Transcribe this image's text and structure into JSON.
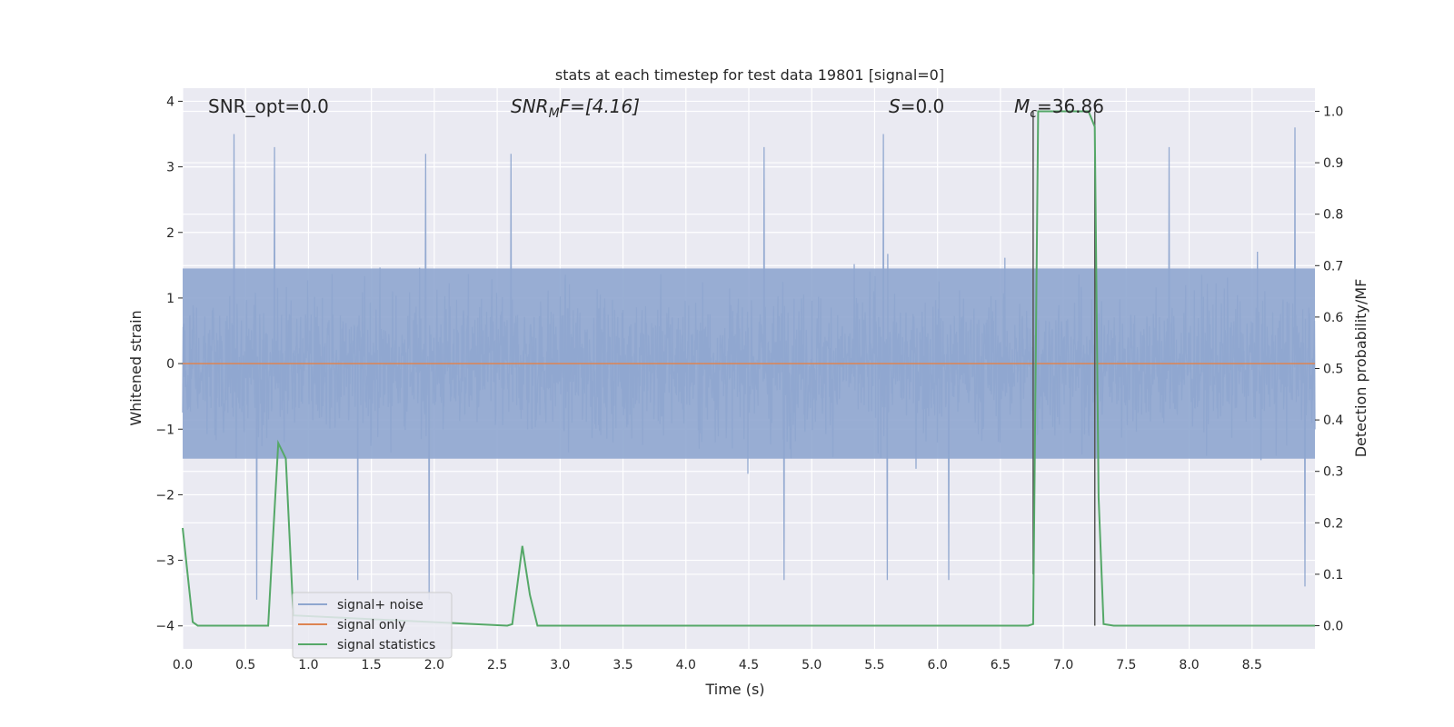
{
  "chart_data": {
    "type": "line",
    "title": "stats at each timestep for test data 19801 [signal=0]",
    "xlabel": "Time (s)",
    "ylabel": "Whitened strain",
    "ylabel_right": "Detection probability/MF",
    "xlim": [
      0.0,
      9.0
    ],
    "ylim": [
      -4.35,
      4.2
    ],
    "ylim_right": [
      -0.045,
      1.045
    ],
    "grid": true,
    "x_ticks": [
      "0.0",
      "0.5",
      "1.0",
      "1.5",
      "2.0",
      "2.5",
      "3.0",
      "3.5",
      "4.0",
      "4.5",
      "5.0",
      "5.5",
      "6.0",
      "6.5",
      "7.0",
      "7.5",
      "8.0",
      "8.5"
    ],
    "y_ticks": [
      "4",
      "3",
      "2",
      "1",
      "0",
      "−1",
      "−2",
      "−3",
      "−4"
    ],
    "y_ticks_right": [
      "1.0",
      "0.9",
      "0.8",
      "0.7",
      "0.6",
      "0.5",
      "0.4",
      "0.3",
      "0.2",
      "0.1",
      "0.0"
    ],
    "annotations": {
      "snr_opt": "SNR_opt=0.0",
      "snr_mf_main": "SNR",
      "snr_mf_sub": "M",
      "snr_mf_rest": "F=[4.16]",
      "s_main": "S",
      "s_rest": "=0.0",
      "mc_main": "M",
      "mc_sub": "c",
      "mc_rest": "=36.86"
    },
    "series": [
      {
        "name": "signal+ noise",
        "color": "#8fa6cf",
        "description_values": "whitened noise, approx. Gaussian, amplitude ~ ±1.5 with peaks to about +3.6 / −3.6",
        "envelope": {
          "typical_abs": 1.45,
          "max": 3.6,
          "min": -3.6
        },
        "peaks": [
          {
            "x": 0.41,
            "y": 3.5
          },
          {
            "x": 0.73,
            "y": 3.3
          },
          {
            "x": 1.93,
            "y": 3.2
          },
          {
            "x": 2.61,
            "y": 3.2
          },
          {
            "x": 4.62,
            "y": 3.3
          },
          {
            "x": 5.57,
            "y": 3.5
          },
          {
            "x": 7.84,
            "y": 3.3
          },
          {
            "x": 8.84,
            "y": 3.6
          },
          {
            "x": 0.59,
            "y": -3.6
          },
          {
            "x": 1.39,
            "y": -3.3
          },
          {
            "x": 1.96,
            "y": -3.6
          },
          {
            "x": 4.78,
            "y": -3.3
          },
          {
            "x": 5.6,
            "y": -3.3
          },
          {
            "x": 6.09,
            "y": -3.3
          },
          {
            "x": 8.92,
            "y": -3.4
          }
        ]
      },
      {
        "name": "signal only",
        "color": "#dd8452",
        "x": [
          0.0,
          9.0
        ],
        "y": [
          0.0,
          0.0
        ]
      },
      {
        "name": "signal statistics",
        "color": "#55a868",
        "axis": "right",
        "x": [
          0.0,
          0.08,
          0.12,
          0.2,
          0.68,
          0.72,
          0.76,
          0.8,
          0.82,
          0.88,
          2.58,
          2.62,
          2.7,
          2.76,
          2.82,
          3.0,
          6.72,
          6.76,
          6.8,
          7.2,
          7.25,
          7.28,
          7.32,
          7.4,
          9.0
        ],
        "y": [
          0.19,
          0.007,
          0.0,
          0.0,
          0.0,
          0.18,
          0.355,
          0.335,
          0.325,
          0.02,
          0.0,
          0.003,
          0.155,
          0.06,
          0.0,
          0.0,
          0.0,
          0.003,
          1.0,
          1.0,
          0.97,
          0.25,
          0.003,
          0.0,
          0.0
        ]
      }
    ],
    "vlines": [
      {
        "x": 6.76,
        "ymin_right": 1.0,
        "ymax_right": 0.1,
        "color": "#555555"
      },
      {
        "x": 7.25,
        "ymin_right": 1.0,
        "ymax_right": 0.0,
        "color": "#555555"
      }
    ],
    "legend": {
      "placement": "lower-left",
      "items": [
        "signal+ noise",
        "signal only",
        "signal statistics"
      ]
    }
  }
}
